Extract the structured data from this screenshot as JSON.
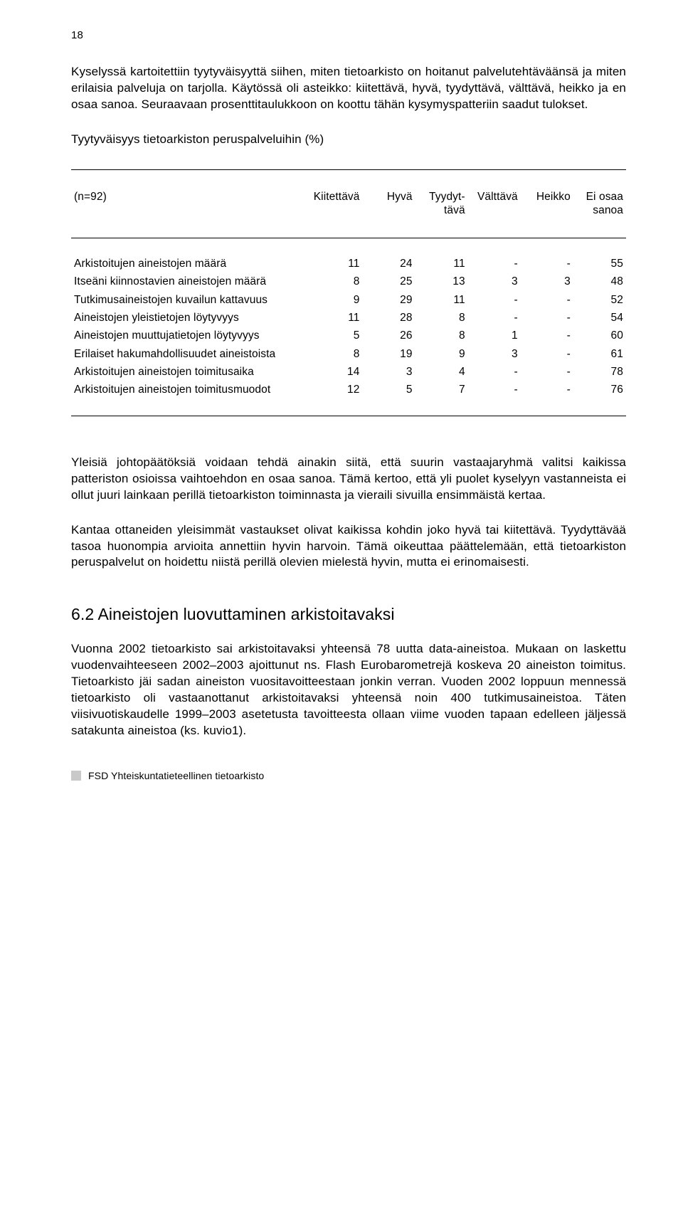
{
  "page_number": "18",
  "para_intro": "Kyselyssä kartoitettiin tyytyväisyyttä siihen, miten tietoarkisto on hoitanut palvelutehtäväänsä ja miten erilaisia palveluja on tarjolla. Käytössä oli asteikko: kiitettävä, hyvä, tyydyttävä, välttävä, heikko ja en osaa sanoa. Seuraavaan prosenttitaulukkoon on koottu tähän kysymyspatteriin saadut tulokset.",
  "table_title": "Tyytyväisyys tietoarkiston peruspalveluihin (%)",
  "table": {
    "n_label": "(n=92)",
    "headers": [
      "Kiitettävä",
      "Hyvä",
      "Tyydyt-\ntävä",
      "Välttävä",
      "Heikko",
      "Ei osaa\nsanoa"
    ],
    "rows": [
      {
        "label": "Arkistoitujen aineistojen määrä",
        "v": [
          "11",
          "24",
          "11",
          "-",
          "-",
          "55"
        ]
      },
      {
        "label": "Itseäni kiinnostavien aineistojen määrä",
        "v": [
          "8",
          "25",
          "13",
          "3",
          "3",
          "48"
        ]
      },
      {
        "label": "Tutkimusaineistojen kuvailun kattavuus",
        "v": [
          "9",
          "29",
          "11",
          "-",
          "-",
          "52"
        ]
      },
      {
        "label": "Aineistojen yleistietojen löytyvyys",
        "v": [
          "11",
          "28",
          "8",
          "-",
          "-",
          "54"
        ]
      },
      {
        "label": "Aineistojen muuttujatietojen löytyvyys",
        "v": [
          "5",
          "26",
          "8",
          "1",
          "-",
          "60"
        ]
      },
      {
        "label": "Erilaiset hakumahdollisuudet aineistoista",
        "v": [
          "8",
          "19",
          "9",
          "3",
          "-",
          "61"
        ]
      },
      {
        "label": "Arkistoitujen aineistojen toimitusaika",
        "v": [
          "14",
          "3",
          "4",
          "-",
          "-",
          "78"
        ]
      },
      {
        "label": "Arkistoitujen aineistojen toimitusmuodot",
        "v": [
          "12",
          "5",
          "7",
          "-",
          "-",
          "76"
        ]
      }
    ]
  },
  "para_after_1": "Yleisiä johtopäätöksiä voidaan tehdä ainakin siitä, että suurin vastaajaryhmä valitsi kaikissa patteriston osioissa vaihtoehdon en osaa sanoa. Tämä kertoo, että yli puolet kyselyyn vastanneista ei ollut juuri lainkaan perillä tietoarkiston toiminnasta ja vieraili sivuilla ensimmäistä kertaa.",
  "para_after_2": "Kantaa ottaneiden yleisimmät vastaukset olivat kaikissa kohdin joko hyvä tai kiitettävä. Tyydyttävää tasoa huonompia arvioita annettiin hyvin harvoin. Tämä oikeuttaa päättelemään, että tietoarkiston peruspalvelut on hoidettu niistä perillä olevien mielestä hyvin, mutta ei erinomaisesti.",
  "section_heading": "6.2 Aineistojen luovuttaminen arkistoitavaksi",
  "para_section": "Vuonna 2002 tietoarkisto sai arkistoitavaksi yhteensä 78 uutta data-aineistoa. Mukaan on laskettu vuodenvaihteeseen 2002–2003 ajoittunut ns. Flash Eurobarometrejä koskeva 20 aineiston toimitus. Tietoarkisto jäi sadan aineiston vuositavoitteestaan jonkin verran. Vuoden 2002 loppuun mennessä tietoarkisto oli vastaanottanut arkistoitavaksi yhteensä noin 400 tutkimusaineistoa. Täten viisivuotiskaudelle 1999–2003 asetetusta tavoitteesta ollaan viime vuoden tapaan edelleen jäljessä satakunta aineistoa (ks. kuvio1).",
  "footer_text": "FSD Yhteiskuntatieteellinen tietoarkisto"
}
